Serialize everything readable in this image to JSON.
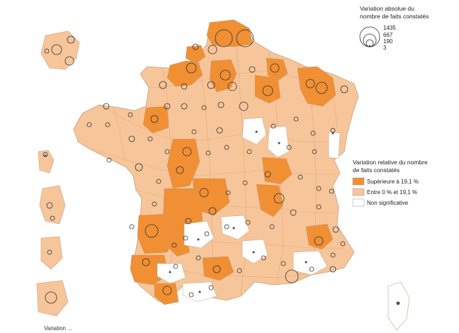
{
  "map": {
    "colors": {
      "high": "#f08f33",
      "mid": "#f7c59a",
      "none": "#ffffff",
      "border": "#e9b48a",
      "outline": "#c8a07e",
      "circle": "#333333"
    }
  },
  "legend_size": {
    "title_line1": "Variation absolue du",
    "title_line2": "nombre de faits constatés",
    "values": [
      "1435",
      "667",
      "190",
      "3"
    ]
  },
  "legend_color": {
    "title_line1": "Variation relative du nombre",
    "title_line2": "de faits constatés",
    "items": [
      {
        "label": "Supérieure à 19,1 %",
        "class": "high"
      },
      {
        "label": "Entre 0 % et 19,1 %",
        "class": "mid"
      },
      {
        "label": "Non significative",
        "class": "none"
      }
    ]
  },
  "footer": {
    "source": "Variation ..."
  },
  "symbols": {
    "circle": "proportional-circle-icon",
    "dot": "small-dot-icon"
  }
}
